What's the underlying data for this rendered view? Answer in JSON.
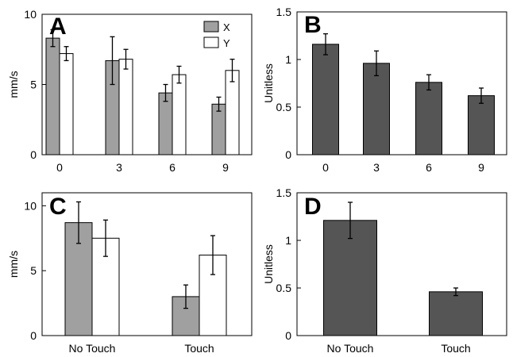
{
  "chart_data": [
    {
      "panel": "A",
      "type": "bar",
      "ylabel": "mm/s",
      "ylim": [
        0,
        10
      ],
      "yticks": [
        0,
        5,
        10
      ],
      "categories": [
        "0",
        "3",
        "6",
        "9"
      ],
      "series": [
        {
          "name": "X",
          "color": "#a0a0a0",
          "values": [
            8.3,
            6.7,
            4.4,
            3.6
          ],
          "errors": [
            0.6,
            1.7,
            0.6,
            0.5
          ]
        },
        {
          "name": "Y",
          "color": "#ffffff",
          "values": [
            7.2,
            6.8,
            5.7,
            6.0
          ],
          "errors": [
            0.5,
            0.7,
            0.6,
            0.8
          ]
        }
      ],
      "legend": "top-right"
    },
    {
      "panel": "B",
      "type": "bar",
      "ylabel": "Unitless",
      "ylim": [
        0,
        1.5
      ],
      "yticks": [
        0,
        0.5,
        1,
        1.5
      ],
      "categories": [
        "0",
        "3",
        "6",
        "9"
      ],
      "series": [
        {
          "color": "#555555",
          "values": [
            1.16,
            0.96,
            0.76,
            0.62
          ],
          "errors": [
            0.11,
            0.13,
            0.08,
            0.08
          ]
        }
      ]
    },
    {
      "panel": "C",
      "type": "bar",
      "ylabel": "mm/s",
      "ylim": [
        0,
        11
      ],
      "yticks": [
        0,
        5,
        10
      ],
      "categories": [
        "No Touch",
        "Touch"
      ],
      "series": [
        {
          "name": "X",
          "color": "#a0a0a0",
          "values": [
            8.7,
            3.0
          ],
          "errors": [
            1.6,
            0.9
          ]
        },
        {
          "name": "Y",
          "color": "#ffffff",
          "values": [
            7.5,
            6.2
          ],
          "errors": [
            1.4,
            1.5
          ]
        }
      ]
    },
    {
      "panel": "D",
      "type": "bar",
      "ylabel": "Unitless",
      "ylim": [
        0,
        1.5
      ],
      "yticks": [
        0,
        0.5,
        1,
        1.5
      ],
      "categories": [
        "No Touch",
        "Touch"
      ],
      "series": [
        {
          "color": "#555555",
          "values": [
            1.21,
            0.46
          ],
          "errors": [
            0.19,
            0.04
          ]
        }
      ]
    }
  ]
}
